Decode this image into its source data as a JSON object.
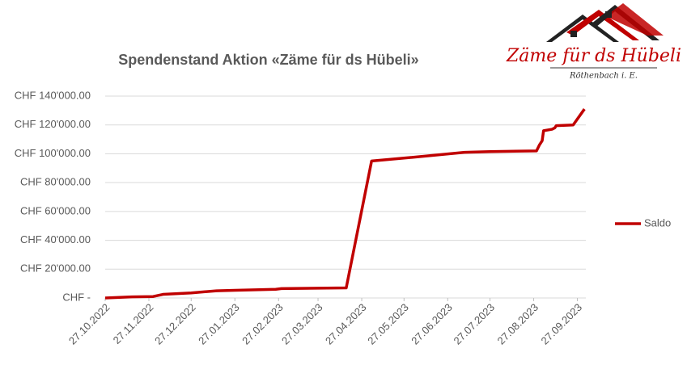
{
  "chart_data": {
    "type": "line",
    "title": "Spendenstand Aktion «Zäme für ds Hübeli»",
    "x": [
      "2022-10-27",
      "2022-11-15",
      "2022-11-30",
      "2022-12-07",
      "2022-12-27",
      "2023-01-14",
      "2023-01-27",
      "2023-02-25",
      "2023-03-01",
      "2023-04-16",
      "2023-05-04",
      "2023-05-27",
      "2023-07-09",
      "2023-07-27",
      "2023-08-29",
      "2023-08-31",
      "2023-09-02",
      "2023-09-03",
      "2023-09-09",
      "2023-09-11",
      "2023-09-12",
      "2023-09-24",
      "2023-10-02"
    ],
    "series": [
      {
        "name": "Saldo",
        "color": "#c00000",
        "values": [
          0,
          800,
          1000,
          2500,
          3500,
          5000,
          5300,
          6000,
          6500,
          7000,
          95000,
          97000,
          101000,
          101500,
          102000,
          106000,
          109000,
          116000,
          117000,
          118000,
          119500,
          120000,
          131000
        ]
      }
    ],
    "xlim": [
      "2022-10-27",
      "2023-10-03"
    ],
    "xticks": [
      {
        "value": "2022-10-27",
        "label": "27.10.2022"
      },
      {
        "value": "2022-11-27",
        "label": "27.11.2022"
      },
      {
        "value": "2022-12-27",
        "label": "27.12.2022"
      },
      {
        "value": "2023-01-27",
        "label": "27.01.2023"
      },
      {
        "value": "2023-02-27",
        "label": "27.02.2023"
      },
      {
        "value": "2023-03-27",
        "label": "27.03.2023"
      },
      {
        "value": "2023-04-27",
        "label": "27.04.2023"
      },
      {
        "value": "2023-05-27",
        "label": "27.05.2023"
      },
      {
        "value": "2023-06-27",
        "label": "27.06.2023"
      },
      {
        "value": "2023-07-27",
        "label": "27.07.2023"
      },
      {
        "value": "2023-08-27",
        "label": "27.08.2023"
      },
      {
        "value": "2023-09-27",
        "label": "27.09.2023"
      }
    ],
    "ylim": [
      0,
      140000
    ],
    "yticks": [
      {
        "value": 0,
        "label": "CHF -"
      },
      {
        "value": 20000,
        "label": "CHF 20'000.00"
      },
      {
        "value": 40000,
        "label": "CHF 40'000.00"
      },
      {
        "value": 60000,
        "label": "CHF 60'000.00"
      },
      {
        "value": 80000,
        "label": "CHF 80'000.00"
      },
      {
        "value": 100000,
        "label": "CHF 100'000.00"
      },
      {
        "value": 120000,
        "label": "CHF 120'000.00"
      },
      {
        "value": 140000,
        "label": "CHF 140'000.00"
      }
    ],
    "grid": true,
    "legend": "right"
  },
  "logo": {
    "title": "Zäme für ds Hübeli",
    "subtitle": "Röthenbach i. E."
  }
}
